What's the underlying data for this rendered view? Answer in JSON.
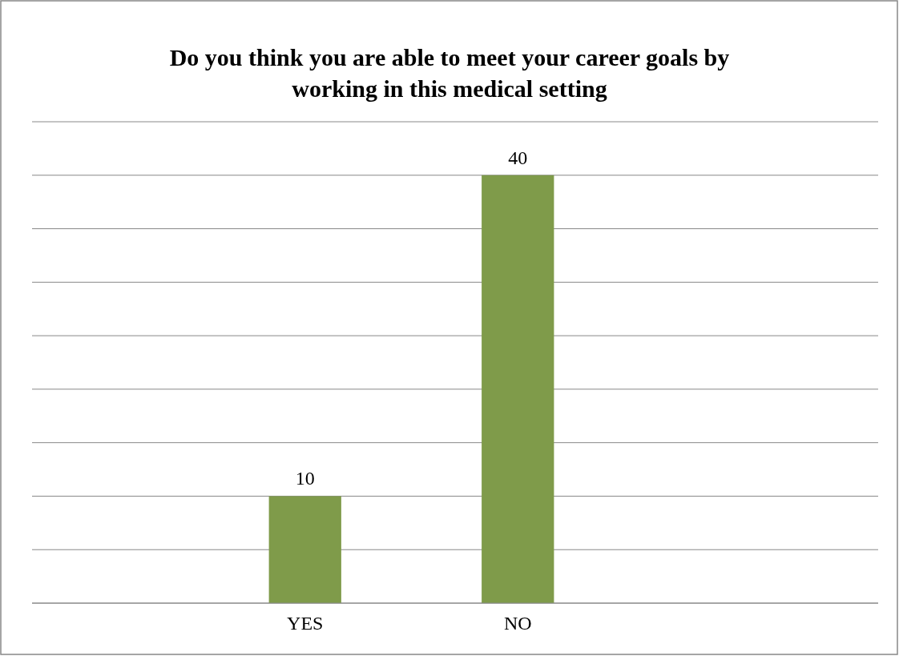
{
  "chart_data": {
    "type": "bar",
    "title": "Do you think you are able to meet your career goals by working in this medical setting",
    "categories": [
      "YES",
      "NO"
    ],
    "values": [
      10,
      40
    ],
    "color": "#7f9b4a",
    "ylim": [
      0,
      45
    ],
    "yticks": [
      {
        "value": 0,
        "label": null
      },
      {
        "value": 5,
        "label": null
      },
      {
        "value": 10,
        "label": null
      },
      {
        "value": 15,
        "label": null
      },
      {
        "value": 20,
        "label": null
      },
      {
        "value": 25,
        "label": null
      },
      {
        "value": 30,
        "label": null
      },
      {
        "value": 35,
        "label": null
      },
      {
        "value": 40,
        "label": null
      },
      {
        "value": 45,
        "label": null
      }
    ],
    "grid": "y",
    "tick_labels": "x",
    "data_labels": true
  }
}
